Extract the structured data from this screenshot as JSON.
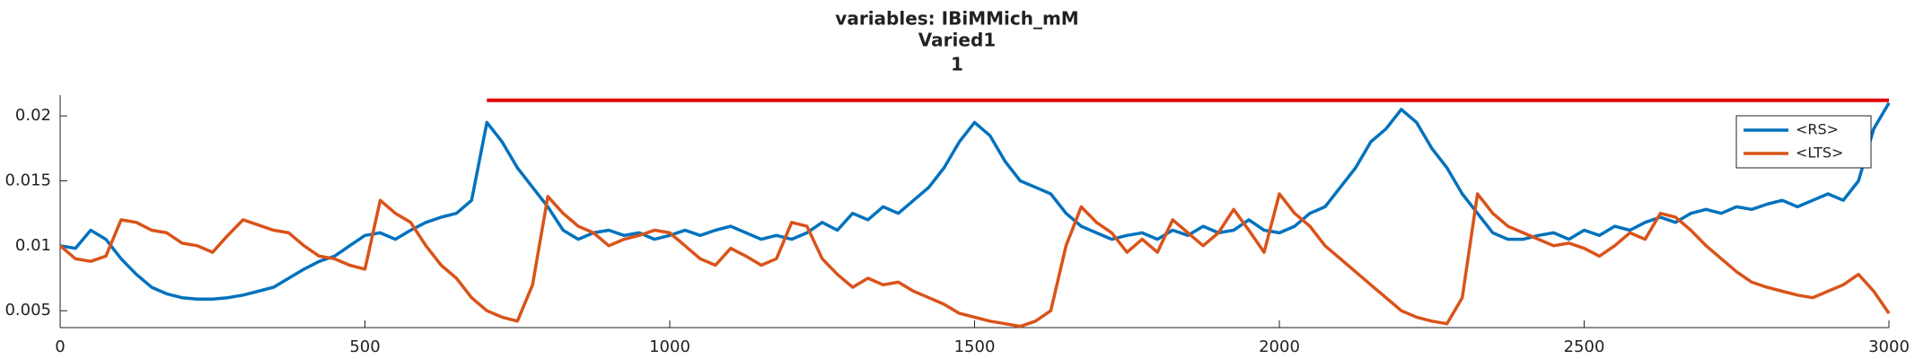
{
  "chart_data": {
    "type": "line",
    "title": "variables: IBiMMich_mM",
    "subtitle": "Varied1",
    "subtitle2": "1",
    "x": [
      0,
      25,
      50,
      75,
      100,
      125,
      150,
      175,
      200,
      225,
      250,
      275,
      300,
      325,
      350,
      375,
      400,
      425,
      450,
      475,
      500,
      525,
      550,
      575,
      600,
      625,
      650,
      675,
      700,
      725,
      750,
      775,
      800,
      825,
      850,
      875,
      900,
      925,
      950,
      975,
      1000,
      1025,
      1050,
      1075,
      1100,
      1125,
      1150,
      1175,
      1200,
      1225,
      1250,
      1275,
      1300,
      1325,
      1350,
      1375,
      1400,
      1425,
      1450,
      1475,
      1500,
      1525,
      1550,
      1575,
      1600,
      1625,
      1650,
      1675,
      1700,
      1725,
      1750,
      1775,
      1800,
      1825,
      1850,
      1875,
      1900,
      1925,
      1950,
      1975,
      2000,
      2025,
      2050,
      2075,
      2100,
      2125,
      2150,
      2175,
      2200,
      2225,
      2250,
      2275,
      2300,
      2325,
      2350,
      2375,
      2400,
      2425,
      2450,
      2475,
      2500,
      2525,
      2550,
      2575,
      2600,
      2625,
      2650,
      2675,
      2700,
      2725,
      2750,
      2775,
      2800,
      2825,
      2850,
      2875,
      2900,
      2925,
      2950,
      2975,
      3000
    ],
    "series": [
      {
        "name": "<RS>",
        "color": "#0072BD",
        "values": [
          0.01,
          0.0098,
          0.0112,
          0.0105,
          0.009,
          0.0078,
          0.0068,
          0.0063,
          0.006,
          0.0059,
          0.0059,
          0.006,
          0.0062,
          0.0065,
          0.0068,
          0.0075,
          0.0082,
          0.0088,
          0.0092,
          0.01,
          0.0108,
          0.011,
          0.0105,
          0.0112,
          0.0118,
          0.0122,
          0.0125,
          0.0135,
          0.0195,
          0.018,
          0.016,
          0.0145,
          0.013,
          0.0112,
          0.0105,
          0.011,
          0.0112,
          0.0108,
          0.011,
          0.0105,
          0.0108,
          0.0112,
          0.0108,
          0.0112,
          0.0115,
          0.011,
          0.0105,
          0.0108,
          0.0105,
          0.011,
          0.0118,
          0.0112,
          0.0125,
          0.012,
          0.013,
          0.0125,
          0.0135,
          0.0145,
          0.016,
          0.018,
          0.0195,
          0.0185,
          0.0165,
          0.015,
          0.0145,
          0.014,
          0.0125,
          0.0115,
          0.011,
          0.0105,
          0.0108,
          0.011,
          0.0105,
          0.0112,
          0.0108,
          0.0115,
          0.011,
          0.0112,
          0.012,
          0.0112,
          0.011,
          0.0115,
          0.0125,
          0.013,
          0.0145,
          0.016,
          0.018,
          0.019,
          0.0205,
          0.0195,
          0.0175,
          0.016,
          0.014,
          0.0125,
          0.011,
          0.0105,
          0.0105,
          0.0108,
          0.011,
          0.0105,
          0.0112,
          0.0108,
          0.0115,
          0.0112,
          0.0118,
          0.0122,
          0.0118,
          0.0125,
          0.0128,
          0.0125,
          0.013,
          0.0128,
          0.0132,
          0.0135,
          0.013,
          0.0135,
          0.014,
          0.0135,
          0.015,
          0.019,
          0.021
        ]
      },
      {
        "name": "<LTS>",
        "color": "#D95319",
        "values": [
          0.01,
          0.009,
          0.0088,
          0.0092,
          0.012,
          0.0118,
          0.0112,
          0.011,
          0.0102,
          0.01,
          0.0095,
          0.0108,
          0.012,
          0.0116,
          0.0112,
          0.011,
          0.01,
          0.0092,
          0.009,
          0.0085,
          0.0082,
          0.0135,
          0.0125,
          0.0118,
          0.01,
          0.0085,
          0.0075,
          0.006,
          0.005,
          0.0045,
          0.0042,
          0.007,
          0.0138,
          0.0125,
          0.0115,
          0.011,
          0.01,
          0.0105,
          0.0108,
          0.0112,
          0.011,
          0.01,
          0.009,
          0.0085,
          0.0098,
          0.0092,
          0.0085,
          0.009,
          0.0118,
          0.0115,
          0.009,
          0.0078,
          0.0068,
          0.0075,
          0.007,
          0.0072,
          0.0065,
          0.006,
          0.0055,
          0.0048,
          0.0045,
          0.0042,
          0.004,
          0.0038,
          0.0042,
          0.005,
          0.01,
          0.013,
          0.0118,
          0.011,
          0.0095,
          0.0105,
          0.0095,
          0.012,
          0.011,
          0.01,
          0.011,
          0.0128,
          0.0112,
          0.0095,
          0.014,
          0.0125,
          0.0115,
          0.01,
          0.009,
          0.008,
          0.007,
          0.006,
          0.005,
          0.0045,
          0.0042,
          0.004,
          0.006,
          0.014,
          0.0125,
          0.0115,
          0.011,
          0.0105,
          0.01,
          0.0102,
          0.0098,
          0.0092,
          0.01,
          0.011,
          0.0105,
          0.0125,
          0.0122,
          0.0112,
          0.01,
          0.009,
          0.008,
          0.0072,
          0.0068,
          0.0065,
          0.0062,
          0.006,
          0.0065,
          0.007,
          0.0078,
          0.0065,
          0.0048
        ]
      }
    ],
    "reference_line": {
      "x": [
        700,
        3000
      ],
      "y": 0.0212,
      "color": "#E00000"
    },
    "xlim": [
      0,
      3000
    ],
    "xticks": [
      0,
      500,
      1000,
      1500,
      2000,
      2500,
      3000
    ],
    "ylim": [
      0.0037,
      0.0216
    ],
    "yticks": [
      0.005,
      0.01,
      0.015,
      0.02
    ],
    "legend": "northeast"
  }
}
